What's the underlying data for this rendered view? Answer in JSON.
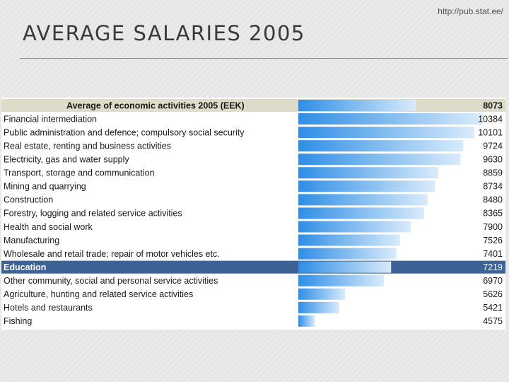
{
  "slide": {
    "title": "AVERAGE SALARIES 2005",
    "source_url": "http://pub.stat.ee/"
  },
  "colors": {
    "header_band": "#dcdcc8",
    "highlight_band": "#3d6296",
    "bar_dark": "#2f8ee6",
    "bar_light": "#d9ebfb"
  },
  "chart_data": {
    "type": "bar",
    "orientation": "horizontal",
    "title": "Average of economic activities 2005 (EEK)",
    "average_value": 8073,
    "unit": "EEK",
    "highlighted_category": "Education",
    "xlim": [
      4000,
      10500
    ],
    "categories": [
      "Financial intermediation",
      "Public administration and defence; compulsory social security",
      "Real estate, renting and business activities",
      "Electricity, gas and water supply",
      "Transport, storage and communication",
      "Mining and quarrying",
      "Construction",
      "Forestry, logging and related service activities",
      "Health and social work",
      "Manufacturing",
      "Wholesale and retail trade; repair of motor vehicles etc.",
      "Education",
      "Other community, social and personal service activities",
      "Agriculture, hunting and related service activities",
      "Hotels and restaurants",
      "Fishing"
    ],
    "values": [
      10384,
      10101,
      9724,
      9630,
      8859,
      8734,
      8480,
      8365,
      7900,
      7526,
      7401,
      7219,
      6970,
      5626,
      5421,
      4575
    ]
  }
}
